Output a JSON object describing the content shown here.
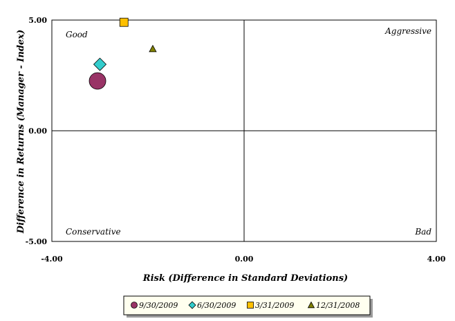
{
  "chart_data": {
    "type": "scatter",
    "title": "",
    "xlabel": "Risk (Difference in Standard Deviations)",
    "ylabel": "Difference in Returns (Manager - Index)",
    "xlim": [
      -4,
      4
    ],
    "ylim": [
      -5,
      5
    ],
    "x_ticks": [
      "-4.00",
      "0.00",
      "4.00"
    ],
    "y_ticks": [
      "5.00",
      "0.00",
      "-5.00"
    ],
    "grid": false,
    "quadrant_labels": {
      "top_left": "Good",
      "top_right": "Aggressive",
      "bottom_left": "Conservative",
      "bottom_right": "Bad"
    },
    "legend_position": "bottom",
    "series": [
      {
        "name": "9/30/2009",
        "marker": "circle",
        "color": "#993366",
        "x": [
          -3.05
        ],
        "y": [
          2.25
        ]
      },
      {
        "name": "6/30/2009",
        "marker": "diamond",
        "color": "#33CCCC",
        "x": [
          -3.0
        ],
        "y": [
          3.0
        ]
      },
      {
        "name": "3/31/2009",
        "marker": "square",
        "color": "#FFC000",
        "x": [
          -2.5
        ],
        "y": [
          4.9
        ]
      },
      {
        "name": "12/31/2008",
        "marker": "triangle",
        "color": "#808000",
        "x": [
          -1.9
        ],
        "y": [
          3.7
        ]
      }
    ]
  }
}
